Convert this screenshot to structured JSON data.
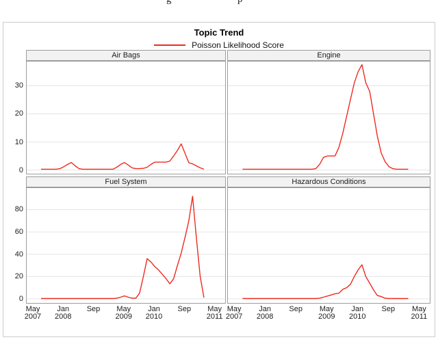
{
  "top_clipped_text": {
    "left_fragment": "g",
    "right_fragment": "p"
  },
  "colors": {
    "line_red": "#ee2a1e",
    "gridline": "#e4e4e4",
    "panel_border": "#9c9c9c",
    "panel_header_bg": "#f2f2f2",
    "figure_border": "#cbcbcb"
  },
  "chart_data": {
    "type": "line",
    "title": "Topic Trend",
    "series_label": "Poisson Likelihood Score",
    "line_color": "#ee2a1e",
    "legend_position": "top",
    "grid": true,
    "x_axis": {
      "unit": "months since May 2007",
      "xlim": [
        -1.8,
        50.6
      ],
      "ticks": [
        {
          "m": 0,
          "line1": "May",
          "line2": "2007"
        },
        {
          "m": 8,
          "line1": "Jan",
          "line2": "2008"
        },
        {
          "m": 16,
          "line1": "Sep",
          "line2": ""
        },
        {
          "m": 24,
          "line1": "May",
          "line2": "2009"
        },
        {
          "m": 32,
          "line1": "Jan",
          "line2": "2010"
        },
        {
          "m": 40,
          "line1": "Sep",
          "line2": ""
        },
        {
          "m": 48,
          "line1": "May",
          "line2": "2011"
        }
      ]
    },
    "rows": [
      {
        "ylim": [
          -1.3,
          38.6
        ],
        "yticks": [
          0,
          10,
          20,
          30
        ]
      },
      {
        "ylim": [
          -3.7,
          99.3
        ],
        "yticks": [
          0,
          20,
          40,
          60,
          80
        ]
      }
    ],
    "x_months": [
      2,
      3,
      4,
      5,
      6,
      7,
      8,
      9,
      10,
      11,
      12,
      13,
      14,
      15,
      16,
      17,
      18,
      19,
      20,
      21,
      22,
      23,
      24,
      25,
      26,
      27,
      28,
      29,
      30,
      31,
      32,
      33,
      34,
      35,
      36,
      37,
      38,
      39,
      40,
      41,
      42,
      43,
      44,
      45
    ],
    "panels": [
      {
        "title": "Air Bags",
        "row": 0,
        "col": 0,
        "values": [
          0.3,
          0.3,
          0.3,
          0.3,
          0.3,
          0.5,
          1.2,
          2.0,
          2.7,
          1.5,
          0.5,
          0.3,
          0.3,
          0.3,
          0.3,
          0.3,
          0.3,
          0.3,
          0.3,
          0.3,
          1.0,
          2.0,
          2.7,
          1.8,
          0.8,
          0.5,
          0.5,
          0.6,
          1.0,
          2.0,
          2.8,
          2.8,
          2.8,
          2.8,
          3.2,
          5.0,
          7.0,
          9.3,
          6.0,
          2.6,
          2.2,
          1.5,
          0.8,
          0.3
        ]
      },
      {
        "title": "Engine",
        "row": 0,
        "col": 1,
        "values": [
          0.3,
          0.3,
          0.3,
          0.3,
          0.3,
          0.3,
          0.3,
          0.3,
          0.3,
          0.3,
          0.3,
          0.3,
          0.3,
          0.3,
          0.3,
          0.3,
          0.3,
          0.3,
          0.3,
          0.5,
          2.0,
          4.5,
          5.0,
          5.0,
          5.0,
          8.0,
          13,
          19,
          25,
          31,
          35,
          37.5,
          31,
          28,
          20,
          12,
          6,
          3,
          1.2,
          0.5,
          0.3,
          0.3,
          0.3,
          0.3
        ]
      },
      {
        "title": "Fuel System",
        "row": 1,
        "col": 0,
        "values": [
          0.3,
          0.3,
          0.3,
          0.3,
          0.3,
          0.3,
          0.3,
          0.3,
          0.3,
          0.3,
          0.3,
          0.3,
          0.3,
          0.3,
          0.3,
          0.3,
          0.3,
          0.3,
          0.3,
          0.3,
          0.5,
          1.5,
          2.6,
          1.5,
          0.6,
          0.5,
          5,
          20,
          36,
          33,
          29,
          26,
          22,
          18,
          13.5,
          18,
          30,
          41,
          55,
          70,
          92,
          55,
          20,
          1
        ]
      },
      {
        "title": "Hazardous Conditions",
        "row": 1,
        "col": 1,
        "values": [
          0.3,
          0.3,
          0.3,
          0.3,
          0.3,
          0.3,
          0.3,
          0.3,
          0.3,
          0.3,
          0.3,
          0.3,
          0.3,
          0.3,
          0.3,
          0.3,
          0.3,
          0.3,
          0.3,
          0.3,
          0.5,
          1.5,
          2.5,
          3.5,
          4.5,
          5.0,
          8.5,
          10,
          13,
          20,
          26,
          30.5,
          20,
          14,
          8,
          3,
          2,
          0.5,
          0.3,
          0.3,
          0.3,
          0.3,
          0.3,
          0.3
        ]
      }
    ]
  }
}
